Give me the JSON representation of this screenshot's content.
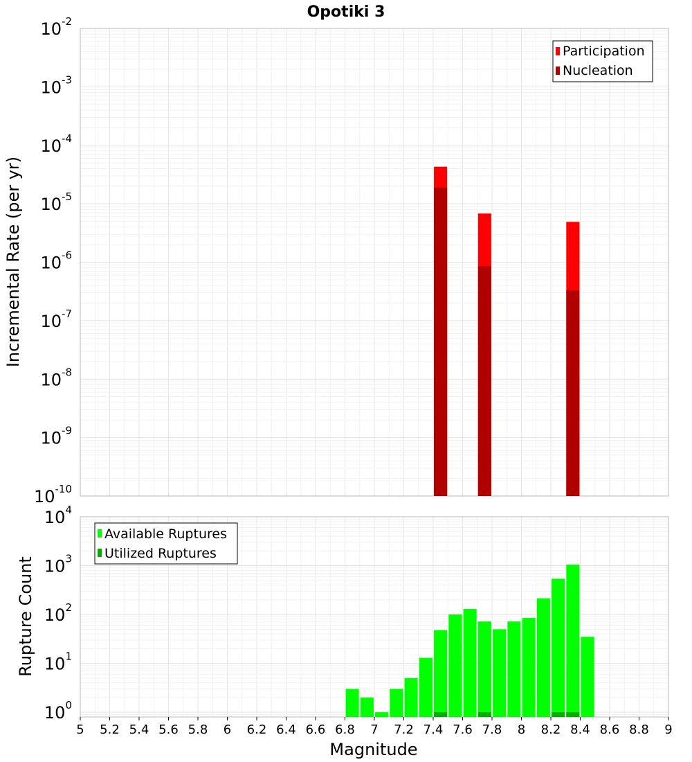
{
  "chart_data": {
    "title": "Opotiki 3",
    "xlabel": "Magnitude",
    "x_ticks": [
      "5",
      "5.2",
      "5.4",
      "5.6",
      "5.8",
      "6",
      "6.2",
      "6.4",
      "6.6",
      "6.8",
      "7",
      "7.2",
      "7.4",
      "7.6",
      "7.8",
      "8",
      "8.2",
      "8.4",
      "8.6",
      "8.8",
      "9"
    ],
    "xlim": [
      5,
      9
    ],
    "panels": [
      {
        "type": "bar",
        "ylabel": "Incremental Rate (per yr)",
        "yscale": "log",
        "ylim": [
          1e-10,
          0.01
        ],
        "y_ticks": [
          {
            "base": "10",
            "exp": "-2"
          },
          {
            "base": "10",
            "exp": "-3"
          },
          {
            "base": "10",
            "exp": "-4"
          },
          {
            "base": "10",
            "exp": "-5"
          },
          {
            "base": "10",
            "exp": "-6"
          },
          {
            "base": "10",
            "exp": "-7"
          },
          {
            "base": "10",
            "exp": "-8"
          },
          {
            "base": "10",
            "exp": "-9"
          },
          {
            "base": "10",
            "exp": "-10"
          }
        ],
        "legend_position": "top-right",
        "series": [
          {
            "name": "Participation",
            "color": "#ff0000",
            "x": [
              7.45,
              7.75,
              8.35
            ],
            "values": [
              4.3e-05,
              6.8e-06,
              4.9e-06
            ]
          },
          {
            "name": "Nucleation",
            "color": "#b00000",
            "x": [
              7.45,
              7.75,
              8.35
            ],
            "values": [
              1.9e-05,
              8.5e-07,
              3.3e-07
            ]
          }
        ]
      },
      {
        "type": "bar",
        "ylabel": "Rupture Count",
        "yscale": "log",
        "ylim": [
          0.8,
          10000
        ],
        "y_ticks": [
          {
            "base": "10",
            "exp": "4"
          },
          {
            "base": "10",
            "exp": "3"
          },
          {
            "base": "10",
            "exp": "2"
          },
          {
            "base": "10",
            "exp": "1"
          },
          {
            "base": "10",
            "exp": "0"
          }
        ],
        "legend_position": "top-left",
        "series": [
          {
            "name": "Available Ruptures",
            "color": "#00ff00",
            "x": [
              6.85,
              6.95,
              7.05,
              7.15,
              7.25,
              7.35,
              7.45,
              7.55,
              7.65,
              7.75,
              7.85,
              7.95,
              8.05,
              8.15,
              8.25,
              8.35,
              8.45
            ],
            "values": [
              3,
              2,
              1,
              3,
              5,
              13,
              48,
              100,
              130,
              72,
              50,
              72,
              85,
              215,
              540,
              1050,
              35
            ]
          },
          {
            "name": "Utilized Ruptures",
            "color": "#00b000",
            "x": [
              7.45,
              7.75,
              8.25,
              8.35
            ],
            "values": [
              1,
              1,
              1,
              1
            ]
          }
        ]
      }
    ]
  }
}
